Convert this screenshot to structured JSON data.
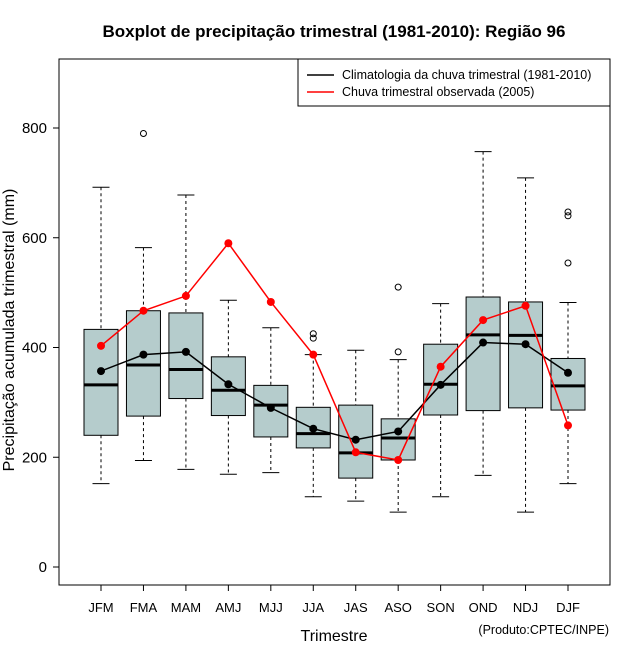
{
  "chart_data": {
    "type": "boxplot",
    "title": "Boxplot de precipitação trimestral (1981-2010): Região 96",
    "xlabel": "Trimestre",
    "ylabel": "Precipitação acumulada trimestral (mm)",
    "credit": "(Produto:CPTEC/INPE)",
    "ylim": [
      -25,
      925
    ],
    "yticks": [
      0,
      200,
      400,
      600,
      800
    ],
    "categories": [
      "JFM",
      "FMA",
      "MAM",
      "AMJ",
      "MJJ",
      "JJA",
      "JAS",
      "ASO",
      "SON",
      "OND",
      "NDJ",
      "DJF"
    ],
    "boxes": [
      {
        "label": "JFM",
        "whisker_low": 152,
        "q1": 240,
        "median": 332,
        "q3": 433,
        "whisker_high": 692,
        "outliers": []
      },
      {
        "label": "FMA",
        "whisker_low": 194,
        "q1": 275,
        "median": 368,
        "q3": 467,
        "whisker_high": 582,
        "outliers": [
          790
        ]
      },
      {
        "label": "MAM",
        "whisker_low": 178,
        "q1": 307,
        "median": 360,
        "q3": 463,
        "whisker_high": 678,
        "outliers": []
      },
      {
        "label": "AMJ",
        "whisker_low": 169,
        "q1": 276,
        "median": 322,
        "q3": 383,
        "whisker_high": 486,
        "outliers": []
      },
      {
        "label": "MJJ",
        "whisker_low": 172,
        "q1": 237,
        "median": 295,
        "q3": 331,
        "whisker_high": 436,
        "outliers": []
      },
      {
        "label": "JJA",
        "whisker_low": 128,
        "q1": 217,
        "median": 243,
        "q3": 291,
        "whisker_high": 387,
        "outliers": [
          417,
          425
        ]
      },
      {
        "label": "JAS",
        "whisker_low": 120,
        "q1": 162,
        "median": 208,
        "q3": 295,
        "whisker_high": 395,
        "outliers": []
      },
      {
        "label": "ASO",
        "whisker_low": 100,
        "q1": 195,
        "median": 235,
        "q3": 270,
        "whisker_high": 378,
        "outliers": [
          392,
          510
        ]
      },
      {
        "label": "SON",
        "whisker_low": 128,
        "q1": 277,
        "median": 333,
        "q3": 406,
        "whisker_high": 480,
        "outliers": []
      },
      {
        "label": "OND",
        "whisker_low": 167,
        "q1": 285,
        "median": 423,
        "q3": 492,
        "whisker_high": 757,
        "outliers": []
      },
      {
        "label": "NDJ",
        "whisker_low": 100,
        "q1": 290,
        "median": 422,
        "q3": 483,
        "whisker_high": 709,
        "outliers": []
      },
      {
        "label": "DJF",
        "whisker_low": 152,
        "q1": 286,
        "median": 330,
        "q3": 380,
        "whisker_high": 482,
        "outliers": [
          554,
          640,
          647
        ]
      }
    ],
    "series": [
      {
        "name": "Climatologia da chuva trimestral (1981-2010)",
        "color": "#000000",
        "values": [
          357,
          387,
          392,
          333,
          290,
          252,
          232,
          247,
          332,
          409,
          406,
          354
        ]
      },
      {
        "name": "Chuva trimestral observada (2005)",
        "color": "#ff0000",
        "values": [
          403,
          467,
          494,
          590,
          483,
          387,
          209,
          195,
          365,
          450,
          476,
          258
        ]
      }
    ],
    "legend_position": "top-right",
    "box_fill": "#b5cccc"
  }
}
